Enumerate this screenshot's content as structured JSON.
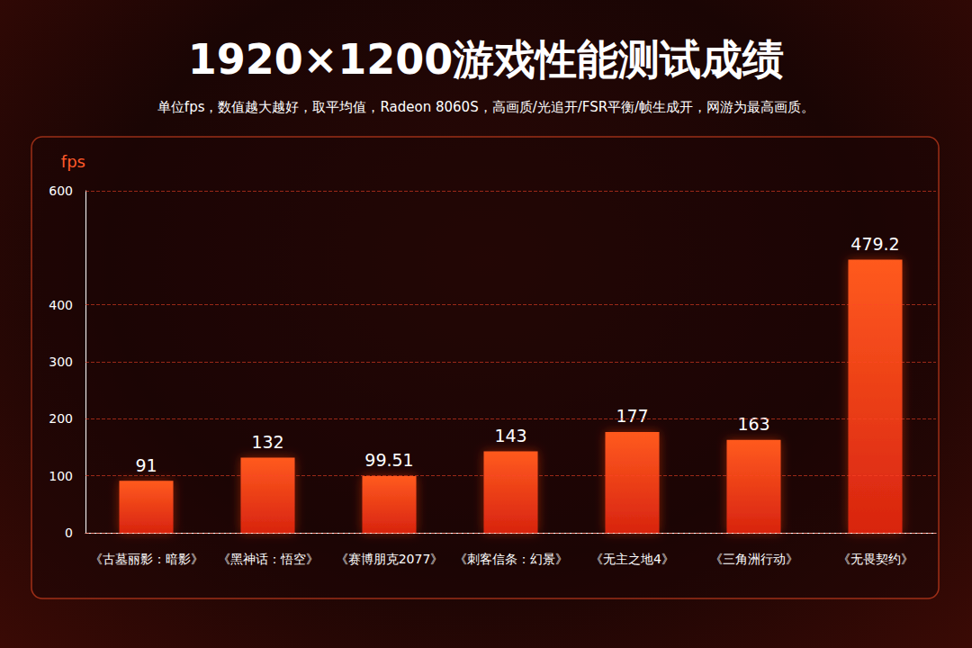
{
  "chart_data": {
    "type": "bar",
    "title": "1920×1200游戏性能测试成绩",
    "subtitle": "单位fps，数值越大越好，取平均值，Radeon 8060S，高画质/光追开/FSR平衡/帧生成开，网游为最高画质。",
    "ylabel": "fps",
    "categories": [
      "《古墓丽影：暗影》",
      "《黑神话：悟空》",
      "《赛博朋克2077》",
      "《刺客信条：幻景》",
      "《无主之地4》",
      "《三角洲行动》",
      "《无畏契约》"
    ],
    "values": [
      91,
      132,
      99.51,
      143,
      177,
      163,
      479.2
    ],
    "color": "#ff5a1f",
    "ylim": [
      0,
      600
    ],
    "yticks": [
      0,
      100,
      200,
      300,
      400,
      600
    ],
    "grid": true,
    "data_labels": true
  }
}
